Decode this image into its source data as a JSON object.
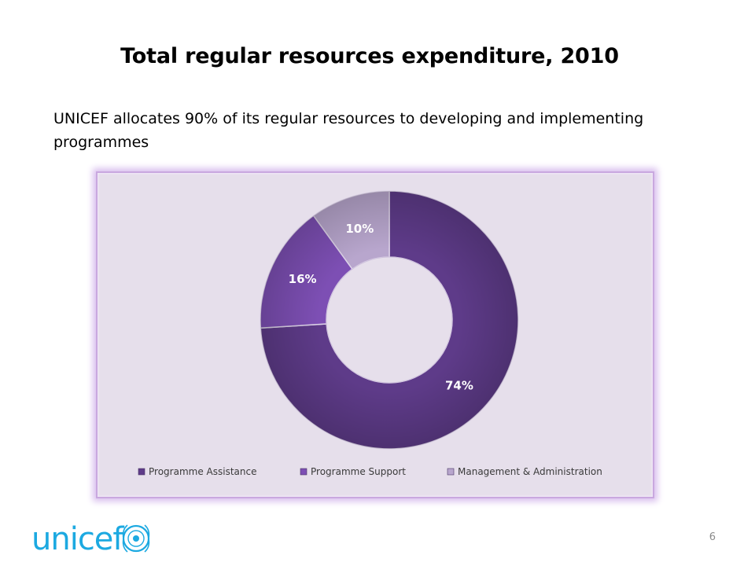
{
  "slide": {
    "title": "Total regular resources expenditure, 2010",
    "subtitle": "UNICEF allocates 90% of its regular resources to developing and implementing programmes",
    "page_number": "6",
    "logo_text": "unicef"
  },
  "colors": {
    "frame_background": "#e6dfeb",
    "frame_border": "#c9a8df",
    "programme_assistance": "#5e3b89",
    "programme_support": "#7d4fb4",
    "management_administration": "#b8a6cd",
    "label_on_dark": "#ffffff",
    "label_on_light": "#ffffff",
    "logo": "#1ca9e1"
  },
  "chart_data": {
    "type": "pie",
    "variant": "donut",
    "title": "",
    "legend_position": "bottom",
    "series": [
      {
        "name": "Programme Assistance",
        "value": 74,
        "label": "74%",
        "color": "#5e3b89"
      },
      {
        "name": "Programme Support",
        "value": 16,
        "label": "16%",
        "color": "#7d4fb4"
      },
      {
        "name": "Management & Administration",
        "value": 10,
        "label": "10%",
        "color": "#b8a6cd"
      }
    ]
  }
}
